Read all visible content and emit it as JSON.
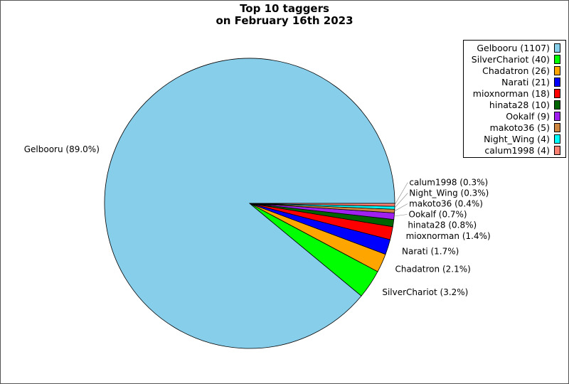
{
  "chart_data": {
    "type": "pie",
    "title": [
      "Top 10 taggers",
      "on February 16th 2023"
    ],
    "categories": [
      "Gelbooru",
      "SilverChariot",
      "Chadatron",
      "Narati",
      "mioxnorman",
      "hinata28",
      "Ookalf",
      "makoto36",
      "Night_Wing",
      "calum1998"
    ],
    "values": [
      1107,
      40,
      26,
      21,
      18,
      10,
      9,
      5,
      4,
      4
    ],
    "percent_labels": [
      "89.0%",
      "3.2%",
      "2.1%",
      "1.7%",
      "1.4%",
      "0.8%",
      "0.7%",
      "0.4%",
      "0.3%",
      "0.3%"
    ],
    "colors": [
      "#87ceeb",
      "#00ff00",
      "#ffa500",
      "#0000ff",
      "#ff0000",
      "#006400",
      "#a020f0",
      "#cd853f",
      "#00ffff",
      "#fa8072"
    ],
    "legend": {
      "placement": "top-right",
      "entries": [
        "Gelbooru (1107)",
        "SilverChariot (40)",
        "Chadatron (26)",
        "Narati (21)",
        "mioxnorman (18)",
        "hinata28 (10)",
        "Ookalf (9)",
        "makoto36 (5)",
        "Night_Wing (4)",
        "calum1998 (4)"
      ]
    },
    "slice_labels": [
      "Gelbooru (89.0%)",
      "SilverChariot (3.2%)",
      "Chadatron (2.1%)",
      "Narati (1.7%)",
      "mioxnorman (1.4%)",
      "hinata28 (0.8%)",
      "Ookalf (0.7%)",
      "makoto36 (0.4%)",
      "Night_Wing (0.3%)",
      "calum1998 (0.3%)"
    ]
  }
}
